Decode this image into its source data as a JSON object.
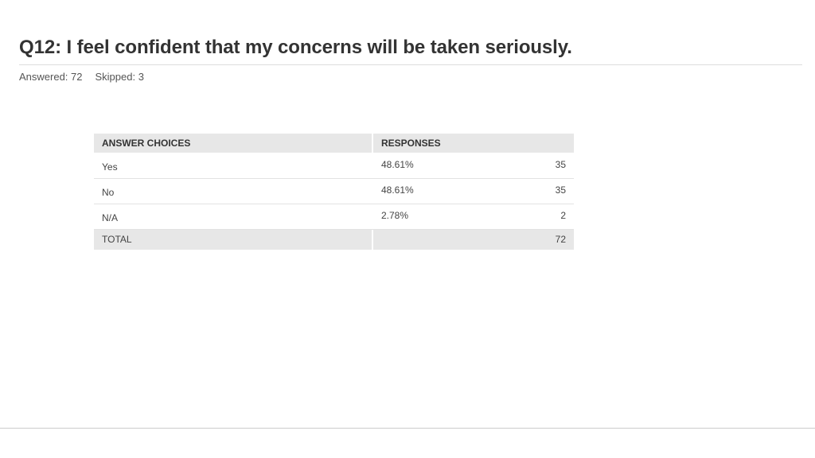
{
  "question": {
    "title": "Q12: I feel confident that my concerns will be taken seriously."
  },
  "stats": {
    "answered": "Answered: 72",
    "skipped": "Skipped: 3"
  },
  "table": {
    "headers": {
      "choices": "ANSWER CHOICES",
      "responses": "RESPONSES"
    },
    "rows": [
      {
        "choice": "Yes",
        "percent": "48.61%",
        "count": "35"
      },
      {
        "choice": "No",
        "percent": "48.61%",
        "count": "35"
      },
      {
        "choice": "N/A",
        "percent": "2.78%",
        "count": "2"
      }
    ],
    "total": {
      "label": "TOTAL",
      "count": "72"
    }
  },
  "colors": {
    "header_bg": "#e7e7e7",
    "text": "#333333",
    "rule": "#dddddd"
  }
}
